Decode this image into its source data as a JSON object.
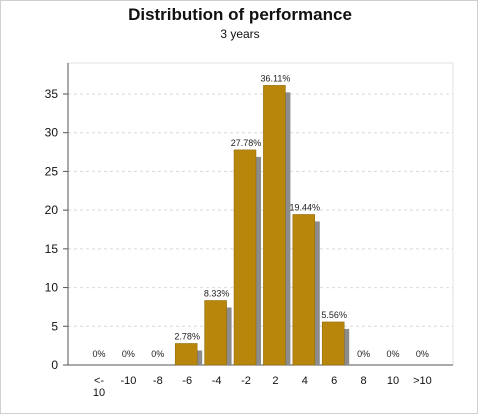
{
  "chart_data": {
    "type": "bar",
    "title": "Distribution of performance",
    "subtitle": "3 years",
    "xlabel": "",
    "ylabel": "",
    "categories": [
      "<-\n10",
      "-10",
      "-8",
      "-6",
      "-4",
      "-2",
      "2",
      "4",
      "6",
      "8",
      "10",
      ">10"
    ],
    "values": [
      0,
      0,
      0,
      2.78,
      8.33,
      27.78,
      36.11,
      19.44,
      5.56,
      0,
      0,
      0
    ],
    "data_labels": [
      "0%",
      "0%",
      "0%",
      "2.78%",
      "8.33%",
      "27.78%",
      "36.11%",
      "19.44%",
      "5.56%",
      "0%",
      "0%",
      "0%"
    ],
    "ylim": [
      0,
      39
    ],
    "yticks": [
      0,
      5,
      10,
      15,
      20,
      25,
      30,
      35
    ],
    "grid": "horizontal-dashed",
    "legend": "none",
    "colors": {
      "bar": "#b8860b",
      "bar_shadow": "#8c8c8c",
      "plot_bg": "#ffffff",
      "border": "#cfcfcf",
      "grid": "#d9d9d9",
      "axis": "#555555"
    }
  }
}
